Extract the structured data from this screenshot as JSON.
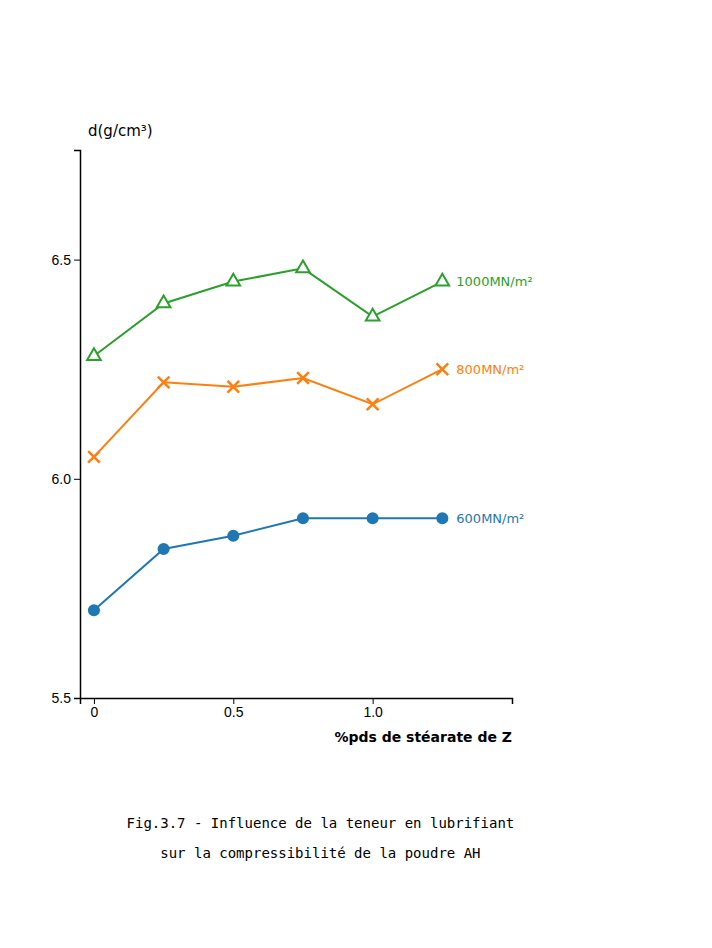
{
  "chart_data": {
    "type": "line",
    "x": [
      0,
      0.25,
      0.5,
      0.75,
      1.0,
      1.25
    ],
    "series": [
      {
        "name": "600MN/m²",
        "marker": "circle",
        "values": [
          5.7,
          5.84,
          5.87,
          5.91,
          5.91,
          5.91
        ]
      },
      {
        "name": "800MN/m²",
        "marker": "x",
        "values": [
          6.05,
          6.22,
          6.21,
          6.23,
          6.17,
          6.25
        ]
      },
      {
        "name": "1000MN/m²",
        "marker": "triangle",
        "values": [
          6.28,
          6.4,
          6.45,
          6.48,
          6.37,
          6.45
        ]
      }
    ],
    "xlabel": "%pds de stéarate de Z",
    "ylabel": "d(g/cm³)",
    "xlim": [
      -0.05,
      1.5
    ],
    "ylim": [
      5.5,
      6.75
    ],
    "xticks": [
      0,
      0.5,
      {
        "value": 1.0,
        "label": "1.0"
      }
    ],
    "yticks": [
      5.5,
      {
        "value": 6.0,
        "label": "6.0"
      },
      6.5
    ],
    "grid": false,
    "annotations": [
      "Fig.3.7 - Influence de la teneur en lubrifiant",
      "sur la compressibilité de la poudre AH"
    ]
  }
}
